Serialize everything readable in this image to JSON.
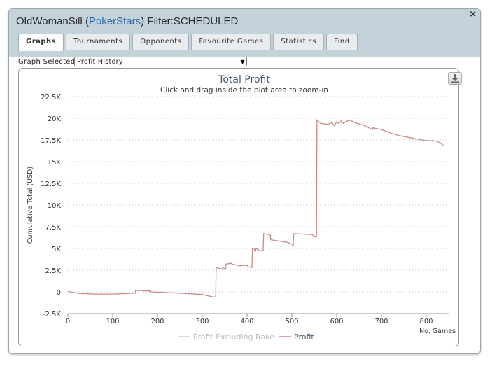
{
  "window": {
    "title_player": "OldWomanSill",
    "title_site_open": "(",
    "title_site": "PokerStars",
    "title_site_close": ")",
    "title_filter": "Filter:SCHEDULED",
    "close_glyph": "×"
  },
  "tabs": [
    {
      "label": "Graphs",
      "active": true
    },
    {
      "label": "Tournaments",
      "active": false
    },
    {
      "label": "Opponents",
      "active": false
    },
    {
      "label": "Favourite Games",
      "active": false
    },
    {
      "label": "Statistics",
      "active": false
    },
    {
      "label": "Find",
      "active": false
    }
  ],
  "graph_select": {
    "label": "Graph Selected:",
    "value": "Profit History"
  },
  "export_icon": "download-icon",
  "colors": {
    "profit": "#c98a8a",
    "profit_excl_rake": "#cccccc",
    "title": "#3e576f",
    "accent_site": "#2a6aa8"
  },
  "chart_data": {
    "type": "line",
    "title": "Total Profit",
    "subtitle": "Click and drag inside the plot area to zoom-in",
    "xlabel": "No. Games",
    "ylabel": "Cumulative Total (USD)",
    "xlim": [
      0,
      850
    ],
    "ylim": [
      -2500,
      22500
    ],
    "x_ticks": [
      "0",
      "100",
      "200",
      "300",
      "400",
      "500",
      "600",
      "700",
      "800"
    ],
    "y_ticks": [
      "-2.5K",
      "0",
      "2.5K",
      "5K",
      "7.5K",
      "10K",
      "12.5K",
      "15K",
      "17.5K",
      "20K",
      "22.5K"
    ],
    "grid": true,
    "legend_position": "bottom-center",
    "series": [
      {
        "name": "Profit Excluding Rake",
        "values": []
      },
      {
        "name": "Profit",
        "x": [
          0,
          10,
          20,
          35,
          60,
          100,
          150,
          151,
          160,
          185,
          186,
          250,
          300,
          325,
          330,
          331,
          345,
          346,
          352,
          353,
          365,
          366,
          385,
          398,
          403,
          411,
          412,
          416,
          417,
          419,
          420,
          430,
          436,
          437,
          448,
          452,
          453,
          490,
          500,
          503,
          504,
          545,
          548,
          549,
          555,
          556,
          565,
          580,
          590,
          595,
          600,
          605,
          610,
          615,
          620,
          630,
          640,
          660,
          680,
          681,
          700,
          720,
          740,
          760,
          780,
          800,
          820,
          830,
          840
        ],
        "y": [
          50,
          -50,
          -150,
          -200,
          -250,
          -250,
          -150,
          150,
          150,
          100,
          0,
          -150,
          -300,
          -600,
          -600,
          2800,
          2600,
          2800,
          2600,
          3200,
          3300,
          3200,
          3000,
          3100,
          2900,
          2800,
          5000,
          4900,
          4800,
          4700,
          5000,
          4700,
          4800,
          6700,
          6600,
          6500,
          6000,
          5700,
          5500,
          5300,
          6700,
          6600,
          6500,
          6400,
          6400,
          19800,
          19400,
          19300,
          19500,
          19100,
          19600,
          19400,
          19700,
          19400,
          19600,
          19800,
          19500,
          19200,
          18700,
          18900,
          18700,
          18300,
          18000,
          17800,
          17600,
          17400,
          17400,
          17200,
          16800
        ]
      }
    ]
  }
}
